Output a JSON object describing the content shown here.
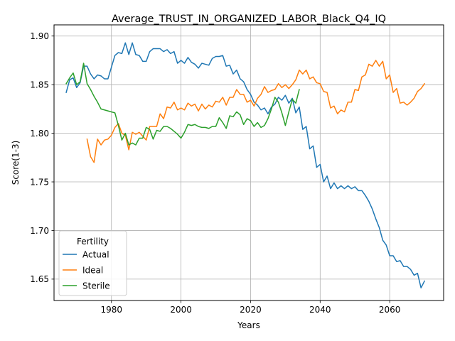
{
  "chart_data": {
    "type": "line",
    "title": "Average_TRUST_IN_ORGANIZED_LABOR_Black_Q4_IQ",
    "xlabel": "Years",
    "ylabel": "Score(1-3)",
    "xlim": [
      1963.5,
      2075.5
    ],
    "ylim": [
      1.628,
      1.9115
    ],
    "xticks": [
      1980,
      2000,
      2020,
      2040,
      2060
    ],
    "yticks": [
      1.65,
      1.7,
      1.75,
      1.8,
      1.85,
      1.9
    ],
    "ytick_labels": [
      "1.65",
      "1.70",
      "1.75",
      "1.80",
      "1.85",
      "1.90"
    ],
    "grid": true,
    "legend": {
      "title": "Fertility",
      "position": "lower-left"
    },
    "series": [
      {
        "name": "Actual",
        "color": "#1f77b4",
        "x": [
          1967,
          1968,
          1969,
          1970,
          1971,
          1972,
          1973,
          1974,
          1975,
          1976,
          1977,
          1978,
          1979,
          1980,
          1981,
          1982,
          1983,
          1984,
          1985,
          1986,
          1987,
          1988,
          1989,
          1990,
          1991,
          1992,
          1993,
          1994,
          1995,
          1996,
          1997,
          1998,
          1999,
          2000,
          2001,
          2002,
          2003,
          2004,
          2005,
          2006,
          2007,
          2008,
          2009,
          2010,
          2011,
          2012,
          2013,
          2014,
          2015,
          2016,
          2017,
          2018,
          2019,
          2020,
          2021,
          2022,
          2023,
          2024,
          2025,
          2026,
          2027,
          2028,
          2029,
          2030,
          2031,
          2032,
          2033,
          2034,
          2035,
          2036,
          2037,
          2038,
          2039,
          2040,
          2041,
          2042,
          2043,
          2044,
          2045,
          2046,
          2047,
          2048,
          2049,
          2050,
          2051,
          2052,
          2053,
          2054,
          2055,
          2056,
          2057,
          2058,
          2059,
          2060,
          2061,
          2062,
          2063,
          2064,
          2065,
          2066,
          2067,
          2068,
          2069,
          2070
        ],
        "y": [
          1.842,
          1.855,
          1.857,
          1.847,
          1.852,
          1.869,
          1.869,
          1.861,
          1.856,
          1.86,
          1.859,
          1.856,
          1.856,
          1.868,
          1.88,
          1.883,
          1.882,
          1.893,
          1.881,
          1.893,
          1.881,
          1.88,
          1.874,
          1.874,
          1.884,
          1.887,
          1.887,
          1.887,
          1.884,
          1.886,
          1.882,
          1.884,
          1.872,
          1.875,
          1.872,
          1.878,
          1.873,
          1.871,
          1.867,
          1.872,
          1.871,
          1.87,
          1.877,
          1.879,
          1.879,
          1.88,
          1.869,
          1.87,
          1.861,
          1.865,
          1.856,
          1.853,
          1.845,
          1.84,
          1.832,
          1.829,
          1.824,
          1.826,
          1.82,
          1.827,
          1.83,
          1.837,
          1.834,
          1.839,
          1.831,
          1.836,
          1.821,
          1.827,
          1.804,
          1.807,
          1.784,
          1.787,
          1.765,
          1.768,
          1.75,
          1.756,
          1.743,
          1.749,
          1.743,
          1.746,
          1.743,
          1.746,
          1.743,
          1.745,
          1.741,
          1.741,
          1.736,
          1.73,
          1.722,
          1.712,
          1.703,
          1.69,
          1.685,
          1.674,
          1.674,
          1.668,
          1.669,
          1.663,
          1.663,
          1.66,
          1.654,
          1.656,
          1.641,
          1.648
        ]
      },
      {
        "name": "Ideal",
        "color": "#ff7f0e",
        "x": [
          1973,
          1974,
          1975,
          1976,
          1977,
          1978,
          1979,
          1980,
          1981,
          1982,
          1983,
          1984,
          1985,
          1986,
          1987,
          1988,
          1989,
          1990,
          1991,
          1992,
          1993,
          1994,
          1995,
          1996,
          1997,
          1998,
          1999,
          2000,
          2001,
          2002,
          2003,
          2004,
          2005,
          2006,
          2007,
          2008,
          2009,
          2010,
          2011,
          2012,
          2013,
          2014,
          2015,
          2016,
          2017,
          2018,
          2019,
          2020,
          2021,
          2022,
          2023,
          2024,
          2025,
          2026,
          2027,
          2028,
          2029,
          2030,
          2031,
          2032,
          2033,
          2034,
          2035,
          2036,
          2037,
          2038,
          2039,
          2040,
          2041,
          2042,
          2043,
          2044,
          2045,
          2046,
          2047,
          2048,
          2049,
          2050,
          2051,
          2052,
          2053,
          2054,
          2055,
          2056,
          2057,
          2058,
          2059,
          2060,
          2061,
          2062,
          2063,
          2064,
          2065,
          2066,
          2067,
          2068,
          2069,
          2070
        ],
        "y": [
          1.794,
          1.776,
          1.77,
          1.794,
          1.788,
          1.793,
          1.794,
          1.798,
          1.806,
          1.81,
          1.8,
          1.798,
          1.783,
          1.801,
          1.799,
          1.801,
          1.797,
          1.793,
          1.807,
          1.807,
          1.807,
          1.82,
          1.815,
          1.827,
          1.826,
          1.832,
          1.824,
          1.826,
          1.824,
          1.831,
          1.828,
          1.83,
          1.823,
          1.83,
          1.825,
          1.829,
          1.827,
          1.833,
          1.832,
          1.837,
          1.829,
          1.837,
          1.837,
          1.845,
          1.84,
          1.84,
          1.832,
          1.834,
          1.828,
          1.836,
          1.84,
          1.848,
          1.842,
          1.844,
          1.845,
          1.851,
          1.847,
          1.85,
          1.846,
          1.85,
          1.855,
          1.865,
          1.861,
          1.865,
          1.856,
          1.858,
          1.852,
          1.851,
          1.843,
          1.842,
          1.826,
          1.828,
          1.82,
          1.824,
          1.822,
          1.832,
          1.832,
          1.845,
          1.844,
          1.858,
          1.86,
          1.871,
          1.869,
          1.875,
          1.869,
          1.874,
          1.856,
          1.86,
          1.842,
          1.846,
          1.831,
          1.832,
          1.829,
          1.832,
          1.836,
          1.843,
          1.846,
          1.851
        ]
      },
      {
        "name": "Sterile",
        "color": "#2ca02c",
        "x": [
          1967,
          1968,
          1969,
          1970,
          1971,
          1972,
          1973,
          1974,
          1975,
          1976,
          1977,
          1978,
          1979,
          1980,
          1981,
          1982,
          1983,
          1984,
          1985,
          1986,
          1987,
          1988,
          1989,
          1990,
          1991,
          1992,
          1993,
          1994,
          1995,
          1996,
          1997,
          1998,
          1999,
          2000,
          2001,
          2002,
          2003,
          2004,
          2005,
          2006,
          2007,
          2008,
          2009,
          2010,
          2011,
          2012,
          2013,
          2014,
          2015,
          2016,
          2017,
          2018,
          2019,
          2020,
          2021,
          2022,
          2023,
          2024,
          2025,
          2026,
          2027,
          2028,
          2029,
          2030,
          2031,
          2032,
          2033,
          2034
        ],
        "y": [
          1.851,
          1.857,
          1.862,
          1.85,
          1.853,
          1.872,
          1.851,
          1.845,
          1.838,
          1.832,
          1.825,
          1.824,
          1.823,
          1.822,
          1.821,
          1.808,
          1.793,
          1.8,
          1.788,
          1.79,
          1.788,
          1.795,
          1.795,
          1.806,
          1.804,
          1.794,
          1.803,
          1.802,
          1.807,
          1.807,
          1.805,
          1.802,
          1.799,
          1.795,
          1.801,
          1.809,
          1.808,
          1.809,
          1.807,
          1.806,
          1.806,
          1.805,
          1.807,
          1.807,
          1.816,
          1.811,
          1.805,
          1.818,
          1.817,
          1.822,
          1.819,
          1.809,
          1.815,
          1.813,
          1.807,
          1.811,
          1.806,
          1.808,
          1.815,
          1.825,
          1.837,
          1.832,
          1.821,
          1.808,
          1.822,
          1.835,
          1.831,
          1.845
        ]
      }
    ]
  }
}
